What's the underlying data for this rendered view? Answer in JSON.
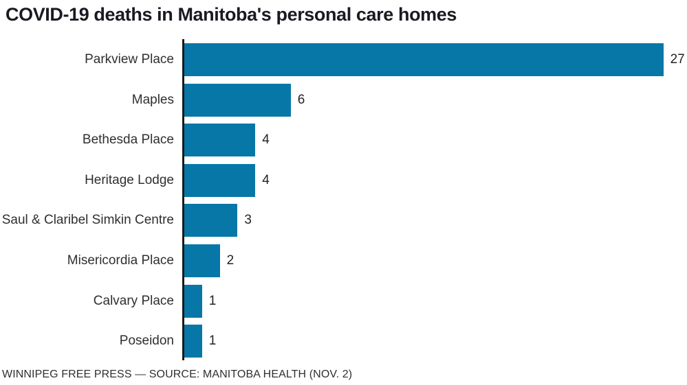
{
  "title": "COVID-19 deaths in Manitoba's personal care homes",
  "footer": "WINNIPEG FREE PRESS — SOURCE: MANITOBA HEALTH (NOV. 2)",
  "colors": {
    "bar": "#0777a8",
    "axis": "#1a1a1a",
    "title_text": "#1a1a22",
    "category_text": "#2f2f2f",
    "value_text": "#222222",
    "background": "#ffffff"
  },
  "chart_data": {
    "type": "bar",
    "orientation": "horizontal",
    "title": "COVID-19 deaths in Manitoba's personal care homes",
    "categories": [
      "Parkview Place",
      "Maples",
      "Bethesda Place",
      "Heritage Lodge",
      "Saul & Claribel Simkin Centre",
      "Misericordia Place",
      "Calvary Place",
      "Poseidon"
    ],
    "values": [
      27,
      6,
      4,
      4,
      3,
      2,
      1,
      1
    ],
    "xlabel": "",
    "ylabel": "",
    "xlim": [
      0,
      27
    ],
    "grid": false,
    "legend": false,
    "value_labels_shown": true,
    "source": "WINNIPEG FREE PRESS — SOURCE: MANITOBA HEALTH (NOV. 2)"
  }
}
